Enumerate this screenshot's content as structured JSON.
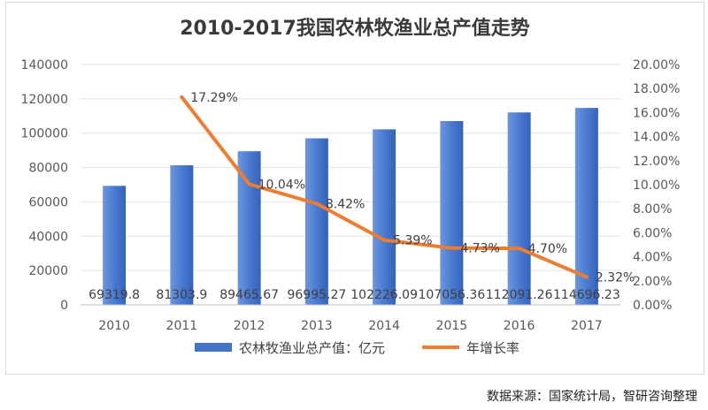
{
  "chart_data": {
    "type": "bar",
    "title": "2010-2017我国农林牧渔业总产值走势",
    "categories": [
      "2010",
      "2011",
      "2012",
      "2013",
      "2014",
      "2015",
      "2016",
      "2017"
    ],
    "series": [
      {
        "name": "农林牧渔业总产值：亿元",
        "type": "bar",
        "axis": "left",
        "color": "#4472c4",
        "values": [
          69319.8,
          81303.9,
          89465.67,
          96995.27,
          102226.09,
          107056.36,
          112091.26,
          114696.23
        ],
        "labels": [
          "69319.8",
          "81303.9",
          "89465.67",
          "96995.27",
          "102226.09",
          "107056.36",
          "112091.26",
          "114696.23"
        ]
      },
      {
        "name": "年增长率",
        "type": "line",
        "axis": "right",
        "color": "#ed7d31",
        "values": [
          null,
          17.29,
          10.04,
          8.42,
          5.39,
          4.73,
          4.7,
          2.32
        ],
        "labels": [
          "",
          "17.29%",
          "10.04%",
          "8.42%",
          "5.39%",
          "4.73%",
          "4.70%",
          "2.32%"
        ]
      }
    ],
    "y_left": {
      "ylim": [
        0,
        140000
      ],
      "ticks": [
        "0",
        "20000",
        "40000",
        "60000",
        "80000",
        "100000",
        "120000",
        "140000"
      ]
    },
    "y_right": {
      "ylim": [
        0,
        20
      ],
      "ticks": [
        "0.00%",
        "2.00%",
        "4.00%",
        "6.00%",
        "8.00%",
        "10.00%",
        "12.00%",
        "14.00%",
        "16.00%",
        "18.00%",
        "20.00%"
      ]
    },
    "grid": true,
    "legend": "bottom"
  },
  "source_note": "数据来源：国家统计局，智研咨询整理"
}
